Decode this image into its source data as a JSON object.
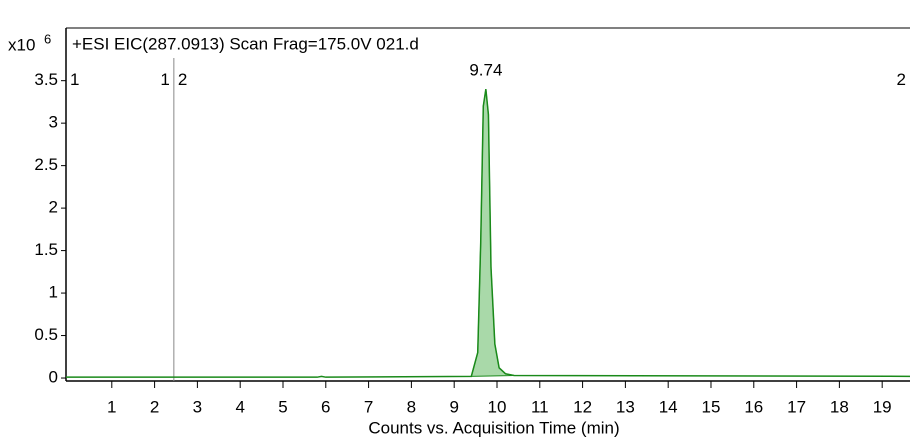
{
  "chart_data": {
    "type": "line",
    "title": "+ESI EIC(287.0913) Scan Frag=175.0V 021.d",
    "y_multiplier": "x10",
    "y_exponent": "6",
    "xlabel": "Counts vs. Acquisition Time (min)",
    "xlim": [
      -0.07,
      19.65
    ],
    "ylim": [
      -0.035,
      4.12
    ],
    "xticks": [
      1,
      2,
      3,
      4,
      5,
      6,
      7,
      8,
      9,
      10,
      11,
      12,
      13,
      14,
      15,
      16,
      17,
      18,
      19
    ],
    "yticks": [
      0,
      0.5,
      1,
      1.5,
      2,
      2.5,
      3,
      3.5
    ],
    "series": [
      {
        "color": "#1a8a1a",
        "fill_color": "#a9d9a9",
        "x": [
          -0.07,
          5.8,
          5.9,
          6.0,
          9.4,
          9.55,
          9.62,
          9.68,
          9.74,
          9.8,
          9.86,
          9.95,
          10.05,
          10.2,
          10.4,
          19.65
        ],
        "values": [
          0.01,
          0.01,
          0.02,
          0.01,
          0.02,
          0.3,
          1.6,
          3.2,
          3.4,
          3.1,
          1.3,
          0.4,
          0.12,
          0.05,
          0.03,
          0.02
        ]
      }
    ],
    "peaks": [
      {
        "x": 9.74,
        "height": 3.4,
        "range": [
          9.4,
          10.4
        ]
      }
    ],
    "segments": [
      {
        "label": "1",
        "range": [
          -0.07,
          2.45
        ]
      },
      {
        "label": "2",
        "range": [
          2.45,
          19.65
        ]
      }
    ],
    "segment_color": "#888888"
  }
}
